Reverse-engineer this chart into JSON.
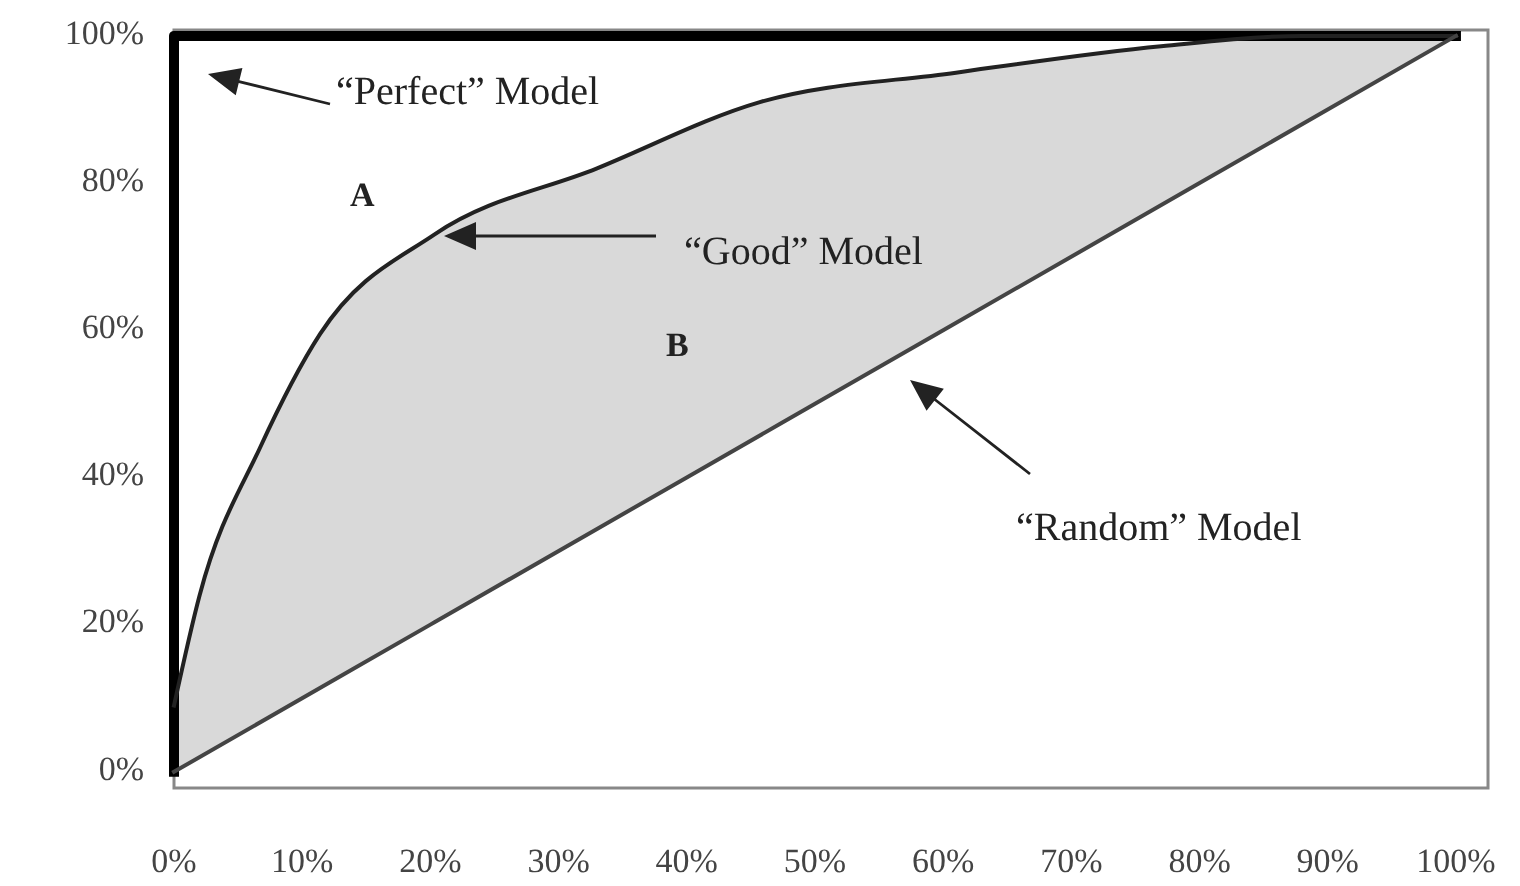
{
  "chart_data": {
    "type": "line",
    "xlim": [
      0,
      102.5
    ],
    "ylim": [
      -2.2,
      100.8
    ],
    "xticks": [
      {
        "value": 0,
        "label": "0%"
      },
      {
        "value": 10,
        "label": "10%"
      },
      {
        "value": 20,
        "label": "20%"
      },
      {
        "value": 30,
        "label": "30%"
      },
      {
        "value": 40,
        "label": "40%"
      },
      {
        "value": 50,
        "label": "50%"
      },
      {
        "value": 60,
        "label": "60%"
      },
      {
        "value": 70,
        "label": "70%"
      },
      {
        "value": 80,
        "label": "80%"
      },
      {
        "value": 90,
        "label": "90%"
      },
      {
        "value": 100,
        "label": "100%"
      }
    ],
    "yticks": [
      {
        "value": 0,
        "label": "0%"
      },
      {
        "value": 20,
        "label": "20%"
      },
      {
        "value": 40,
        "label": "40%"
      },
      {
        "value": 60,
        "label": "60%"
      },
      {
        "value": 80,
        "label": "80%"
      },
      {
        "value": 100,
        "label": "100%"
      }
    ],
    "series": [
      {
        "color": "#000000",
        "x": [
          0,
          0,
          25,
          50,
          75,
          100
        ],
        "values": [
          0,
          100,
          100,
          100,
          100,
          100
        ]
      },
      {
        "color": "#222222",
        "x": [
          0,
          2,
          6.7,
          11.4,
          20.3,
          33,
          45.7,
          61,
          77,
          88,
          100
        ],
        "values": [
          9,
          24,
          44,
          59.5,
          73,
          82,
          91,
          95,
          98.6,
          100,
          100
        ],
        "lower": [
          0,
          2,
          6.7,
          11.4,
          20.3,
          33,
          45.7,
          61,
          77,
          88,
          100
        ],
        "upper": [
          9,
          24,
          44,
          59.5,
          73,
          82,
          91,
          95,
          98.6,
          100,
          100
        ]
      },
      {
        "color": "#444444",
        "x": [
          0,
          20,
          40,
          60,
          80,
          100
        ],
        "values": [
          0,
          20,
          40,
          60,
          80,
          100
        ]
      }
    ],
    "annotations": [
      "“Perfect” Model",
      "“Good” Model",
      "“Random” Model",
      "A",
      "B"
    ]
  }
}
